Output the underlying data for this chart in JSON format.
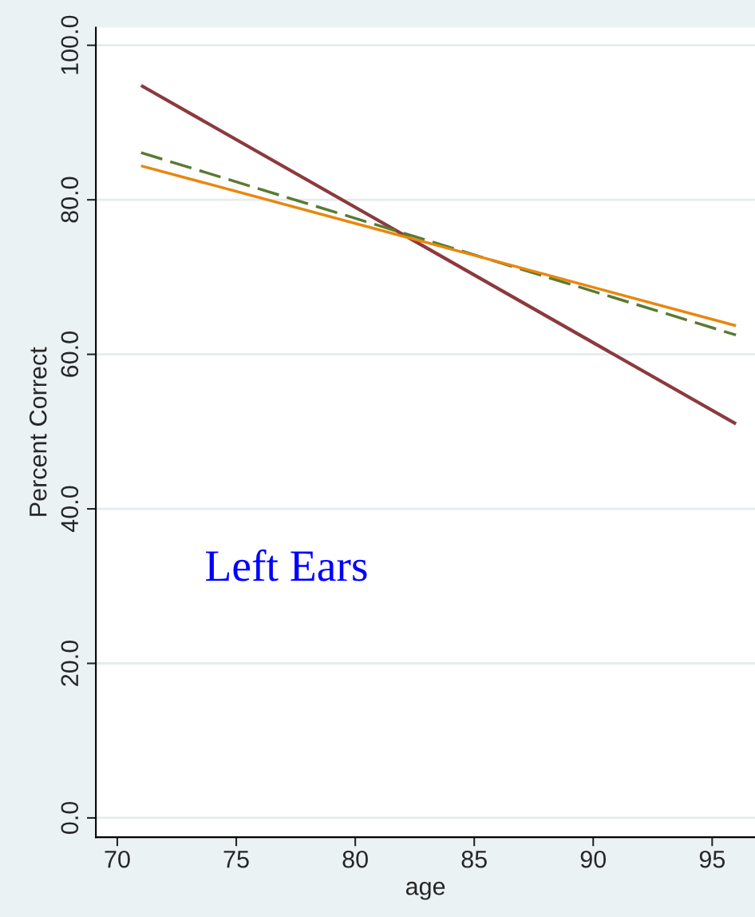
{
  "chart_data": {
    "type": "line",
    "xlabel": "age",
    "ylabel": "Percent Correct",
    "x": [
      71,
      96
    ],
    "series": [
      {
        "color": "#8b3a3e",
        "values": [
          94.8,
          51.0
        ],
        "line_style": "solid"
      },
      {
        "color": "#5a7a32",
        "values": [
          86.1,
          62.5
        ],
        "line_style": "dashed"
      },
      {
        "color": "#e8870e",
        "values": [
          84.4,
          63.7
        ],
        "line_style": "solid"
      }
    ],
    "xlim": [
      69.1,
      96.8
    ],
    "xticks": [
      70,
      75,
      80,
      85,
      90,
      95
    ],
    "ylim": [
      -2.5,
      102.3
    ],
    "yticks": [
      {
        "value": 0,
        "label": "0.0"
      },
      {
        "value": 20,
        "label": "20.0"
      },
      {
        "value": 40,
        "label": "40.0"
      },
      {
        "value": 60,
        "label": "60.0"
      },
      {
        "value": 80,
        "label": "80.0"
      },
      {
        "value": 100,
        "label": "100.0"
      }
    ],
    "grid": "y",
    "legend": false,
    "annotations": [
      "Left Ears"
    ]
  }
}
